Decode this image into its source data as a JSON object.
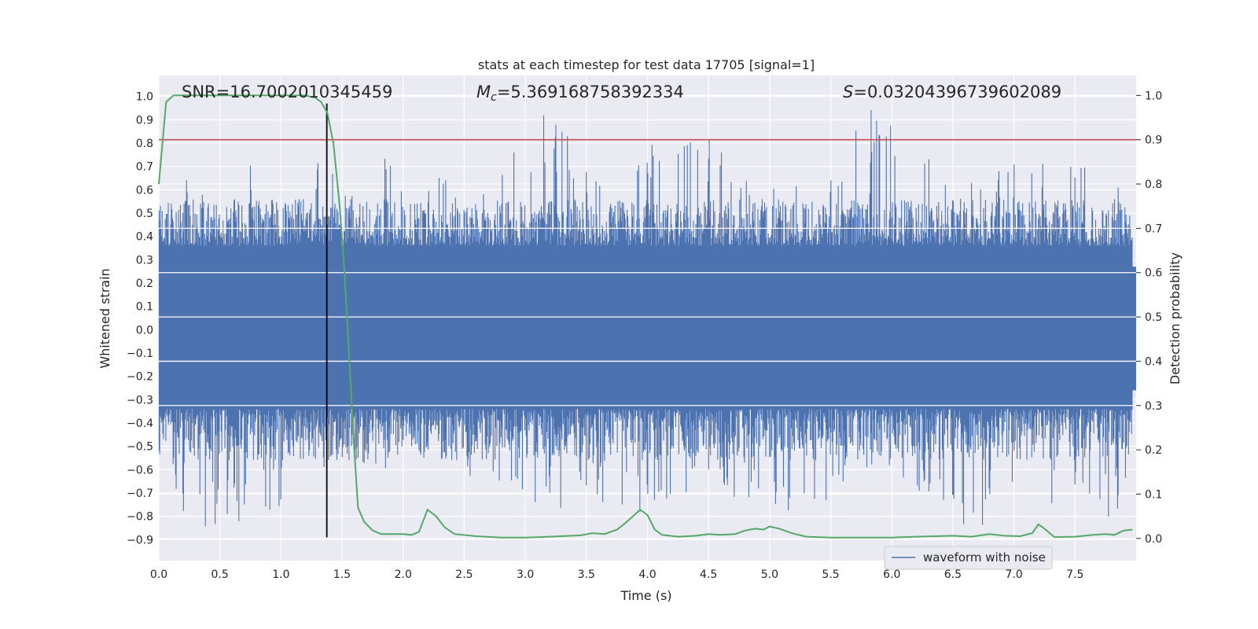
{
  "chart_data": {
    "type": "line",
    "title": "stats at each timestep for test data 17705 [signal=1]",
    "xlabel": "Time (s)",
    "ylabel": "Whitened strain",
    "y2label": "Detection probability",
    "xlim": [
      0.0,
      8.0
    ],
    "ylim": [
      -0.99,
      1.09
    ],
    "y2lim": [
      -0.05,
      1.045
    ],
    "x_ticks": [
      "0.0",
      "0.5",
      "1.0",
      "1.5",
      "2.0",
      "2.5",
      "3.0",
      "3.5",
      "4.0",
      "4.5",
      "5.0",
      "5.5",
      "6.0",
      "6.5",
      "7.0",
      "7.5"
    ],
    "y_ticks": [
      "1.0",
      "0.9",
      "0.8",
      "0.7",
      "0.6",
      "0.5",
      "0.4",
      "0.3",
      "0.2",
      "0.1",
      "0.0",
      "−0.1",
      "−0.2",
      "−0.3",
      "−0.4",
      "−0.5",
      "−0.6",
      "−0.7",
      "−0.8",
      "−0.9"
    ],
    "y2_ticks": [
      "1.0",
      "0.9",
      "0.8",
      "0.7",
      "0.6",
      "0.5",
      "0.4",
      "0.3",
      "0.2",
      "0.1",
      "0.0"
    ],
    "grid": true,
    "legend_position": "lower-right",
    "annotations": {
      "snr": "SNR=16.7002010345459",
      "mc_symbol": "M",
      "mc_sub": "c",
      "mc_value": "=5.369168758392334",
      "s_symbol": "S",
      "s_value": "=0.03204396739602089"
    },
    "series": [
      {
        "name": "waveform with noise",
        "axis": "left",
        "color": "#4c72b0",
        "upper_envelope": [
          [
            0.0,
            0.6
          ],
          [
            0.25,
            0.65
          ],
          [
            0.5,
            0.55
          ],
          [
            0.75,
            0.79
          ],
          [
            1.0,
            0.5
          ],
          [
            1.3,
            0.8
          ],
          [
            1.5,
            0.6
          ],
          [
            1.85,
            0.8
          ],
          [
            2.5,
            0.6
          ],
          [
            3.25,
            0.97
          ],
          [
            3.5,
            0.7
          ],
          [
            4.0,
            0.8
          ],
          [
            4.5,
            0.85
          ],
          [
            5.0,
            0.6
          ],
          [
            5.5,
            0.78
          ],
          [
            5.83,
            1.0
          ],
          [
            6.5,
            0.7
          ],
          [
            7.0,
            0.75
          ],
          [
            7.5,
            0.72
          ],
          [
            7.95,
            0.6
          ]
        ],
        "lower_envelope": [
          [
            0.0,
            -0.45
          ],
          [
            0.2,
            -0.89
          ],
          [
            1.0,
            -0.77
          ],
          [
            1.5,
            -0.6
          ],
          [
            2.5,
            -0.62
          ],
          [
            3.2,
            -0.79
          ],
          [
            3.5,
            -0.72
          ],
          [
            4.0,
            -0.8
          ],
          [
            4.5,
            -0.65
          ],
          [
            4.85,
            -0.77
          ],
          [
            5.05,
            -0.85
          ],
          [
            6.0,
            -0.6
          ],
          [
            6.5,
            -0.82
          ],
          [
            6.8,
            -0.87
          ],
          [
            7.5,
            -0.77
          ],
          [
            7.85,
            -0.84
          ],
          [
            7.95,
            -0.55
          ]
        ]
      },
      {
        "name": "detection probability",
        "axis": "right",
        "color": "#55a868",
        "points": [
          [
            0.0,
            0.8
          ],
          [
            0.06,
            0.985
          ],
          [
            0.12,
            1.0
          ],
          [
            0.5,
            1.0
          ],
          [
            1.0,
            1.0
          ],
          [
            1.2,
            1.0
          ],
          [
            1.28,
            0.995
          ],
          [
            1.33,
            0.985
          ],
          [
            1.38,
            0.96
          ],
          [
            1.43,
            0.89
          ],
          [
            1.48,
            0.75
          ],
          [
            1.52,
            0.6
          ],
          [
            1.56,
            0.4
          ],
          [
            1.6,
            0.2
          ],
          [
            1.63,
            0.07
          ],
          [
            1.68,
            0.038
          ],
          [
            1.75,
            0.018
          ],
          [
            1.82,
            0.01
          ],
          [
            2.0,
            0.01
          ],
          [
            2.07,
            0.008
          ],
          [
            2.13,
            0.015
          ],
          [
            2.2,
            0.065
          ],
          [
            2.27,
            0.05
          ],
          [
            2.34,
            0.025
          ],
          [
            2.42,
            0.01
          ],
          [
            2.6,
            0.005
          ],
          [
            2.8,
            0.002
          ],
          [
            3.0,
            0.002
          ],
          [
            3.2,
            0.004
          ],
          [
            3.45,
            0.007
          ],
          [
            3.55,
            0.012
          ],
          [
            3.65,
            0.01
          ],
          [
            3.75,
            0.02
          ],
          [
            3.82,
            0.035
          ],
          [
            3.88,
            0.05
          ],
          [
            3.94,
            0.065
          ],
          [
            4.0,
            0.053
          ],
          [
            4.06,
            0.02
          ],
          [
            4.12,
            0.008
          ],
          [
            4.25,
            0.004
          ],
          [
            4.4,
            0.006
          ],
          [
            4.5,
            0.01
          ],
          [
            4.6,
            0.008
          ],
          [
            4.72,
            0.01
          ],
          [
            4.8,
            0.018
          ],
          [
            4.88,
            0.022
          ],
          [
            4.95,
            0.02
          ],
          [
            5.0,
            0.027
          ],
          [
            5.08,
            0.022
          ],
          [
            5.18,
            0.012
          ],
          [
            5.3,
            0.004
          ],
          [
            5.5,
            0.002
          ],
          [
            6.0,
            0.002
          ],
          [
            6.2,
            0.004
          ],
          [
            6.5,
            0.006
          ],
          [
            6.65,
            0.004
          ],
          [
            6.8,
            0.01
          ],
          [
            6.92,
            0.006
          ],
          [
            7.05,
            0.005
          ],
          [
            7.15,
            0.012
          ],
          [
            7.2,
            0.032
          ],
          [
            7.26,
            0.02
          ],
          [
            7.33,
            0.003
          ],
          [
            7.5,
            0.004
          ],
          [
            7.65,
            0.008
          ],
          [
            7.75,
            0.01
          ],
          [
            7.82,
            0.008
          ],
          [
            7.9,
            0.018
          ],
          [
            7.97,
            0.02
          ]
        ]
      },
      {
        "name": "threshold",
        "axis": "right",
        "color": "#c44e52",
        "value": 0.9
      },
      {
        "name": "marker",
        "axis": "left",
        "color": "#000000",
        "x": 1.375,
        "y_range": [
          -0.89,
          0.97
        ]
      }
    ],
    "legend": [
      "waveform with noise"
    ]
  }
}
